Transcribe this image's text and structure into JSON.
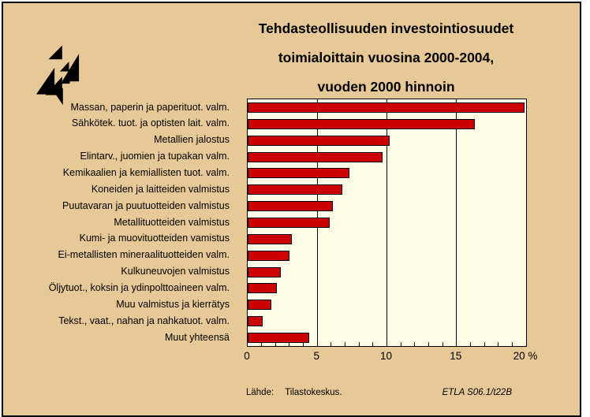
{
  "colors": {
    "page_bg": "#ffffff",
    "panel_bg": "#e6c996",
    "plot_bg": "#fffde6",
    "bar_fill": "#cc0000",
    "line_and_text": "#000000"
  },
  "title": {
    "line1": "Tehdasteollisuuden investointiosuudet",
    "line2": "toimialoittain vuosina 2000-2004,",
    "line3": "vuoden 2000 hinnoin"
  },
  "logo": {
    "name": "etla-triangles-logo",
    "color": "#000000"
  },
  "chart_data": {
    "type": "bar",
    "orientation": "horizontal",
    "title": "Tehdasteollisuuden investointiosuudet toimialoittain vuosina 2000-2004, vuoden 2000 hinnoin",
    "categories": [
      "Massan, paperin ja paperituot. valm.",
      "Sähkötek. tuot. ja optisten lait. valm.",
      "Metallien jalostus",
      "Elintarv., juomien ja tupakan valm.",
      "Kemikaalien ja kemiallisten tuot. valm.",
      "Koneiden ja laitteiden valmistus",
      "Puutavaran ja puutuotteiden valmistus",
      "Metallituotteiden valmistus",
      "Kumi- ja muovituotteiden vamistus",
      "Ei-metallisten mineraalituotteiden valm.",
      "Kulkuneuvojen valmistus",
      "Öljytuot., koksin ja ydinpolttoaineen valm.",
      "Muu valmistus ja kierrätys",
      "Tekst., vaat., nahan ja nahkatuot. valm.",
      "Muut yhteensä"
    ],
    "values": [
      19.9,
      16.3,
      10.2,
      9.7,
      7.3,
      6.8,
      6.1,
      5.9,
      3.2,
      3.0,
      2.4,
      2.1,
      1.7,
      1.1,
      4.4
    ],
    "xlim": [
      0,
      20
    ],
    "x_tick_values": [
      0,
      5,
      10,
      15,
      20
    ],
    "x_tick_labels": [
      "0",
      "5",
      "10",
      "15",
      "20 %"
    ],
    "minor_tick_step": 1,
    "gridlines_at": [
      5,
      10,
      15
    ],
    "grid": "vertical-major",
    "legend": "none",
    "bar_color": "#cc0000",
    "bar_border": "#000000"
  },
  "footer": {
    "source_label": "Lähde:",
    "source_value": "Tilastokeskus.",
    "figure_code": "ETLA S06.1/t22B"
  }
}
